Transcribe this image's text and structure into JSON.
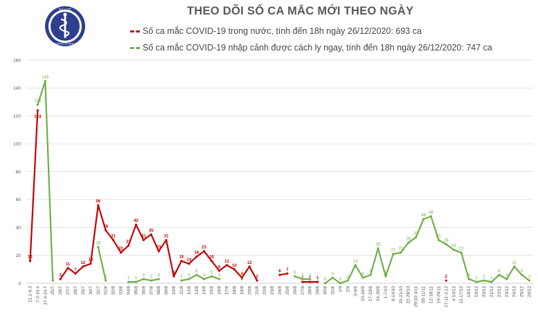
{
  "logo": {
    "text": "BỘ Y TẾ",
    "subtext": "MINISTRY OF HEALTH"
  },
  "chart_data": {
    "type": "line",
    "title": "THEO DÕI SỐ CA MẮC MỚI THEO NGÀY",
    "ylim": [
      0,
      160
    ],
    "yticks": [
      0,
      20,
      40,
      60,
      80,
      100,
      120,
      140,
      160
    ],
    "grid": true,
    "legend_position": "top",
    "categories": [
      "21.1-6.3",
      "7.3-16.4",
      "17.4-24.7",
      "25/7",
      "26/7",
      "27/7",
      "28/7",
      "29/7",
      "30/7",
      "31/7",
      "01/8",
      "02/8",
      "03/8",
      "04/8",
      "05/8",
      "06/8",
      "07/8",
      "08/8",
      "09/8",
      "10/8",
      "11/8",
      "12/8",
      "13/8",
      "14/8",
      "15/8",
      "16/8",
      "17/8",
      "18/8",
      "19/8",
      "20/8",
      "21/8",
      "22/8",
      "23/8",
      "24/8",
      "25/8",
      "26/8",
      "27/8",
      "28/8",
      "29/8",
      "30/8",
      "31/8",
      "1/9",
      "2/9",
      "3-9/9",
      "10-16/9",
      "17-23/9",
      "24-30/9",
      "1-7/10",
      "8-14/10",
      "15-21/10",
      "22-28/10",
      "29/10-4/11",
      "05-11/11",
      "12-18/11",
      "19-26/11",
      "27-11-3.12",
      "4-10/12",
      "11-17/12",
      "18/12",
      "19/12",
      "20/12",
      "21/12",
      "22/12",
      "23/12",
      "24/12",
      "25/12",
      "26/12"
    ],
    "series": [
      {
        "name": "Số ca mắc COVID-19 trong nước, tính đến 18h ngày 26/12/2020: 693 ca",
        "color": "#c00000",
        "values": [
          16,
          124,
          null,
          null,
          3,
          11,
          7,
          12,
          14,
          56,
          38,
          31,
          22,
          27,
          42,
          31,
          35,
          23,
          31,
          5,
          16,
          14,
          19,
          23,
          16,
          9,
          13,
          10,
          4,
          12,
          2,
          null,
          null,
          6,
          7,
          null,
          1,
          1,
          1,
          null,
          null,
          null,
          null,
          null,
          null,
          null,
          null,
          null,
          null,
          null,
          null,
          null,
          null,
          null,
          null,
          2,
          null,
          null,
          null,
          null,
          null,
          null,
          null,
          null,
          null,
          null,
          null
        ]
      },
      {
        "name": "Số ca mắc COVID-19 nhập cảnh được cách ly ngay, tính đến 18h ngày 26/12/2020: 747 ca",
        "color": "#70ad47",
        "values": [
          null,
          128,
          145,
          2,
          null,
          null,
          null,
          null,
          null,
          26,
          2,
          null,
          null,
          1,
          1,
          3,
          2,
          3,
          null,
          null,
          2,
          3,
          6,
          3,
          5,
          3,
          null,
          null,
          3,
          null,
          null,
          null,
          null,
          null,
          null,
          5,
          3,
          3,
          null,
          0,
          4,
          0,
          2,
          13,
          4,
          6,
          25,
          5,
          21,
          22,
          29,
          33,
          46,
          48,
          31,
          28,
          24,
          22,
          3,
          1,
          2,
          1,
          6,
          3,
          12,
          6,
          2
        ]
      }
    ]
  }
}
